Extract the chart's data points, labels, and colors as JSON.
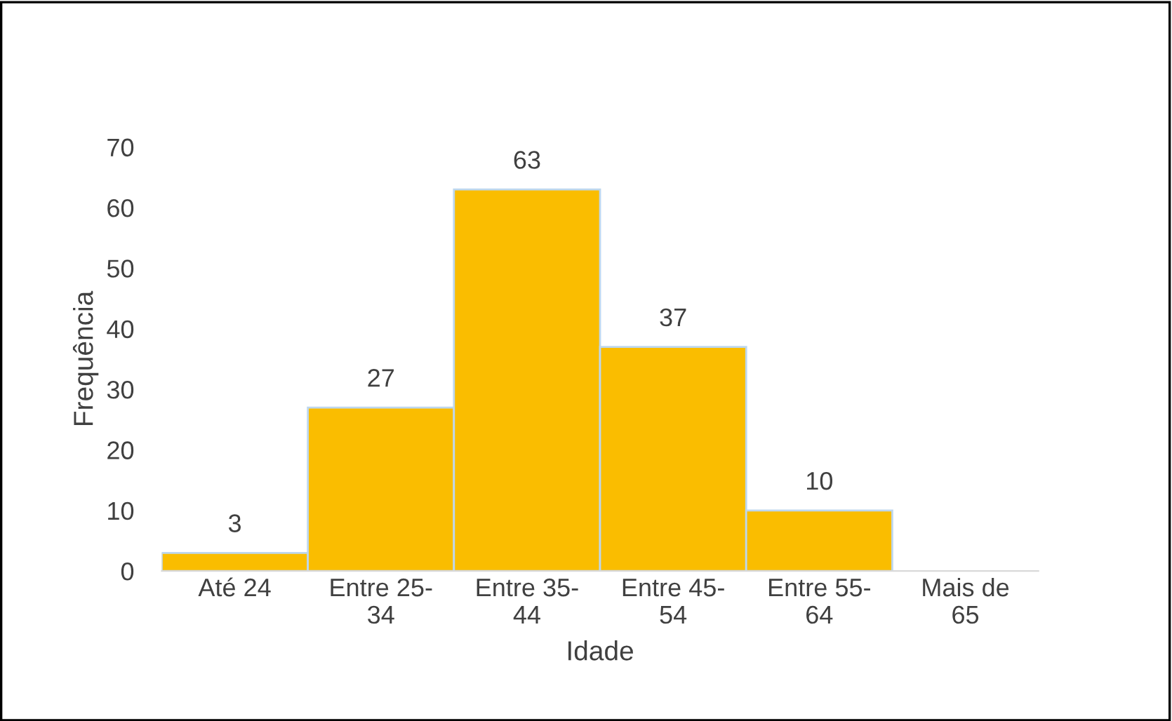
{
  "chart_data": {
    "type": "bar",
    "xlabel": "Idade",
    "ylabel": "Frequência",
    "categories": [
      "Até 24",
      "Entre 25-\n34",
      "Entre 35-\n44",
      "Entre 45-\n54",
      "Entre 55-\n64",
      "Mais de\n65"
    ],
    "values": [
      3,
      27,
      63,
      37,
      10,
      0
    ],
    "value_labels": [
      "3",
      "27",
      "63",
      "37",
      "10",
      null
    ],
    "color": "#fabd00",
    "ylim": [
      0,
      70
    ],
    "yticks": [
      0,
      10,
      20,
      30,
      40,
      50,
      60,
      70
    ],
    "grid": false,
    "legend": false
  }
}
